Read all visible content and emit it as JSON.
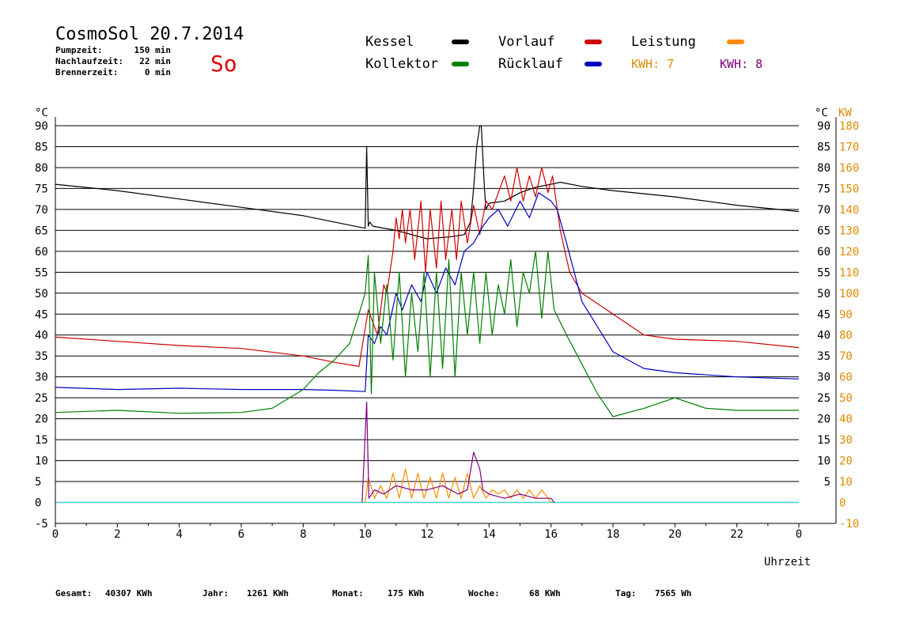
{
  "header": {
    "title": "CosmoSol 20.7.2014",
    "day": "So",
    "stats": [
      {
        "label": "Pumpzeit:",
        "value": "150 min"
      },
      {
        "label": "Nachlaufzeit:",
        "value": "22 min"
      },
      {
        "label": "Brennerzeit:",
        "value": "0 min"
      }
    ]
  },
  "legend": {
    "kessel": "Kessel",
    "kollektor": "Kollektor",
    "vorlauf": "Vorlauf",
    "ruecklauf": "Rücklauf",
    "leistung": "Leistung",
    "kwh1": "KWH: 7",
    "kwh2": "KWH: 8"
  },
  "colors": {
    "kessel": "#000000",
    "kollektor": "#008000",
    "vorlauf": "#d00000",
    "ruecklauf": "#0000c0",
    "leistung": "#ff8c00",
    "kwh2": "#800080",
    "baseline": "#40d0d0",
    "grid": "#000000",
    "right_axis2": "#e08a00"
  },
  "footer": {
    "gesamt": {
      "label": "Gesamt:",
      "value": "40307 KWh"
    },
    "jahr": {
      "label": "Jahr:",
      "value": "1261 KWh"
    },
    "monat": {
      "label": "Monat:",
      "value": "175 KWh"
    },
    "woche": {
      "label": "Woche:",
      "value": "68 KWh"
    },
    "tag": {
      "label": "Tag:",
      "value": "7565 Wh"
    }
  },
  "chart_data": {
    "type": "line",
    "xlabel": "Uhrzeit",
    "ylabel": "°C",
    "ylabel_right": "°C",
    "ylabel_right2": "KW",
    "xlim": [
      0,
      24
    ],
    "ylim": [
      -5,
      90
    ],
    "grid": true,
    "x_ticks": [
      "0",
      "2",
      "4",
      "6",
      "8",
      "10",
      "12",
      "14",
      "16",
      "18",
      "20",
      "22",
      "0"
    ],
    "y_ticks": [
      "-5",
      "0",
      "5",
      "10",
      "15",
      "20",
      "25",
      "30",
      "35",
      "40",
      "45",
      "50",
      "55",
      "60",
      "65",
      "70",
      "75",
      "80",
      "85",
      "90"
    ],
    "y_ticks_right": [
      "5",
      "10",
      "15",
      "20",
      "25",
      "30",
      "35",
      "40",
      "45",
      "50",
      "55",
      "60",
      "65",
      "70",
      "75",
      "80",
      "85",
      "90"
    ],
    "y_ticks_right2": [
      "-10",
      "0",
      "10",
      "20",
      "30",
      "40",
      "50",
      "60",
      "70",
      "80",
      "90",
      "100",
      "110",
      "120",
      "130",
      "140",
      "150",
      "160",
      "170",
      "180"
    ],
    "series": [
      {
        "name": "Kessel",
        "key": "kessel",
        "x": [
          0,
          2,
          4,
          6,
          8,
          9,
          10,
          10.05,
          10.1,
          10.15,
          10.25,
          11,
          12,
          12.8,
          13.2,
          13.4,
          13.5,
          13.6,
          13.7,
          13.75,
          13.85,
          13.9,
          14,
          14.5,
          15,
          15.5,
          16,
          16.3,
          17,
          18,
          20,
          22,
          24
        ],
        "y": [
          76,
          74.5,
          72.5,
          70.5,
          68.5,
          67,
          65.5,
          85,
          66,
          67,
          66,
          65,
          63,
          63.5,
          64,
          67,
          75,
          85,
          90,
          90,
          75,
          70,
          71.5,
          72,
          74,
          75.3,
          76,
          76.5,
          75.5,
          74.5,
          73,
          71,
          69.5
        ]
      },
      {
        "name": "Vorlauf",
        "key": "vorlauf",
        "x": [
          0,
          2,
          4,
          6,
          8,
          9,
          9.8,
          10.1,
          10.2,
          10.4,
          10.6,
          10.7,
          10.9,
          11,
          11.1,
          11.2,
          11.3,
          11.45,
          11.6,
          11.8,
          11.95,
          12.1,
          12.3,
          12.45,
          12.6,
          12.8,
          12.95,
          13.1,
          13.3,
          13.5,
          13.7,
          13.9,
          14.1,
          14.3,
          14.5,
          14.7,
          14.9,
          15.1,
          15.3,
          15.5,
          15.7,
          15.9,
          16.05,
          16.3,
          16.6,
          17,
          18,
          19,
          20,
          22,
          24
        ],
        "y": [
          39.5,
          38.5,
          37.5,
          36.8,
          35,
          33.5,
          32.5,
          46,
          44,
          40,
          52,
          50,
          60,
          68,
          63,
          70,
          62,
          70,
          58,
          72,
          55,
          70,
          56,
          72,
          58,
          70,
          58,
          72,
          62,
          71,
          64,
          72,
          70,
          74,
          78,
          72,
          80,
          72,
          78,
          73,
          80,
          74,
          78,
          65,
          55,
          50,
          45,
          40,
          39,
          38.5,
          37
        ]
      },
      {
        "name": "Rücklauf",
        "key": "ruecklauf",
        "x": [
          0,
          2,
          4,
          6,
          8,
          9,
          10,
          10.1,
          10.3,
          10.5,
          10.7,
          11,
          11.2,
          11.5,
          11.8,
          12,
          12.3,
          12.6,
          12.9,
          13.2,
          13.5,
          13.8,
          14,
          14.3,
          14.6,
          15,
          15.3,
          15.6,
          16,
          16.2,
          16.5,
          17,
          18,
          19,
          20,
          22,
          24
        ],
        "y": [
          27.5,
          27,
          27.3,
          27,
          27,
          26.8,
          26.5,
          40,
          38,
          42,
          40,
          50,
          46,
          52,
          48,
          55,
          50,
          56,
          52,
          60,
          62,
          66,
          68,
          70,
          66,
          72,
          68,
          74,
          72,
          70,
          62,
          48,
          36,
          32,
          31,
          30,
          29.5
        ]
      },
      {
        "name": "Kollektor",
        "key": "kollektor",
        "x": [
          0,
          2,
          4,
          6,
          7,
          8,
          8.5,
          9,
          9.5,
          9.8,
          10,
          10.1,
          10.2,
          10.3,
          10.5,
          10.7,
          10.9,
          11.1,
          11.3,
          11.5,
          11.7,
          11.9,
          12.1,
          12.3,
          12.5,
          12.7,
          12.9,
          13.1,
          13.3,
          13.5,
          13.7,
          13.9,
          14.1,
          14.3,
          14.5,
          14.7,
          14.9,
          15.1,
          15.3,
          15.5,
          15.7,
          15.9,
          16.1,
          16.5,
          17,
          17.5,
          18,
          18.5,
          19,
          20,
          21,
          22,
          24
        ],
        "y": [
          21.5,
          22,
          21.3,
          21.5,
          22.5,
          27,
          31,
          34,
          38,
          45,
          50,
          59,
          26,
          55,
          38,
          52,
          34,
          55,
          30,
          50,
          36,
          55,
          30,
          55,
          32,
          58,
          30,
          55,
          40,
          55,
          38,
          55,
          40,
          52,
          45,
          58,
          42,
          55,
          50,
          60,
          44,
          60,
          46,
          40,
          33,
          26,
          20.5,
          21.5,
          22.5,
          25,
          22.5,
          22,
          22
        ]
      },
      {
        "name": "Leistung",
        "key": "leistung",
        "x": [
          10,
          10.1,
          10.3,
          10.5,
          10.7,
          10.9,
          11.1,
          11.3,
          11.5,
          11.7,
          11.9,
          12.1,
          12.3,
          12.5,
          12.7,
          12.9,
          13.1,
          13.3,
          13.5,
          13.7,
          13.9,
          14.1,
          14.3,
          14.5,
          14.7,
          14.9,
          15.1,
          15.3,
          15.5,
          15.7,
          15.9,
          16.0
        ],
        "y": [
          0,
          6,
          1,
          4,
          1,
          7,
          1,
          8,
          1,
          7,
          1,
          6,
          1,
          7,
          1,
          6,
          1,
          7,
          1,
          4,
          1,
          3,
          2,
          3,
          1,
          3,
          1,
          3,
          1,
          3,
          1,
          0
        ]
      },
      {
        "name": "KWH: 8",
        "key": "kwh2",
        "x": [
          9.9,
          10.05,
          10.12,
          10.3,
          10.6,
          11,
          11.5,
          12,
          12.5,
          13,
          13.3,
          13.5,
          13.7,
          13.8,
          14,
          14.5,
          15,
          15.5,
          16.0,
          16.1
        ],
        "y": [
          0,
          24,
          1,
          3,
          2,
          4,
          3,
          3,
          4,
          2,
          3,
          12,
          8,
          3,
          2,
          1,
          2,
          1,
          1,
          0
        ]
      }
    ]
  }
}
